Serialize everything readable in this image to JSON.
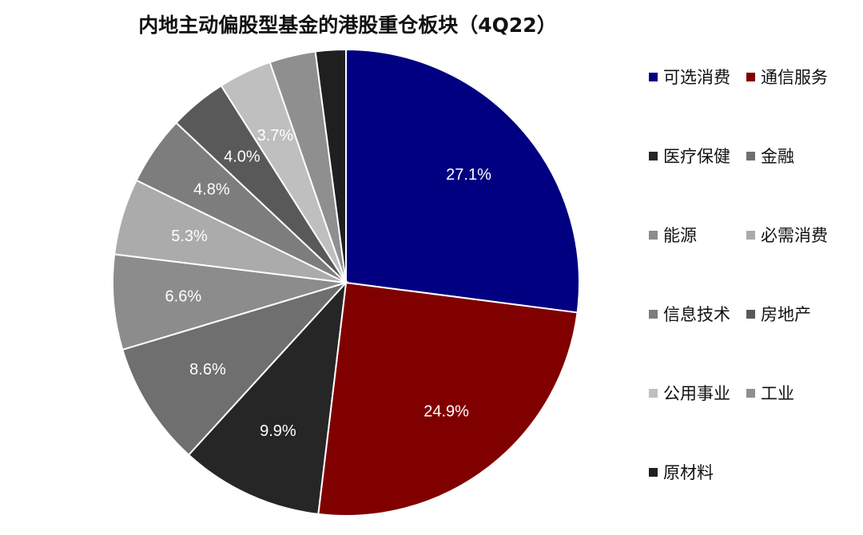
{
  "chart_data": {
    "type": "pie",
    "title": "内地主动偏股型基金的港股重仓板块（4Q22）",
    "slices": [
      {
        "name": "可选消费",
        "value": 27.1,
        "label": "27.1%",
        "color": "#000080"
      },
      {
        "name": "通信服务",
        "value": 24.9,
        "label": "24.9%",
        "color": "#800000"
      },
      {
        "name": "医疗保健",
        "value": 9.9,
        "label": "9.9%",
        "color": "#262626"
      },
      {
        "name": "金融",
        "value": 8.6,
        "label": "8.6%",
        "color": "#6f6f6f"
      },
      {
        "name": "能源",
        "value": 6.6,
        "label": "6.6%",
        "color": "#8c8c8c"
      },
      {
        "name": "必需消费",
        "value": 5.3,
        "label": "5.3%",
        "color": "#ababab"
      },
      {
        "name": "信息技术",
        "value": 4.8,
        "label": "4.8%",
        "color": "#7d7d7d"
      },
      {
        "name": "房地产",
        "value": 4.0,
        "label": "4.0%",
        "color": "#595959"
      },
      {
        "name": "公用事业",
        "value": 3.7,
        "label": "3.7%",
        "color": "#bfbfbf"
      },
      {
        "name": "工业",
        "value": 3.2,
        "label": "",
        "color": "#8f8f8f"
      },
      {
        "name": "原材料",
        "value": 2.1,
        "label": "",
        "color": "#1f1f1f"
      }
    ],
    "legend_position": "right"
  }
}
